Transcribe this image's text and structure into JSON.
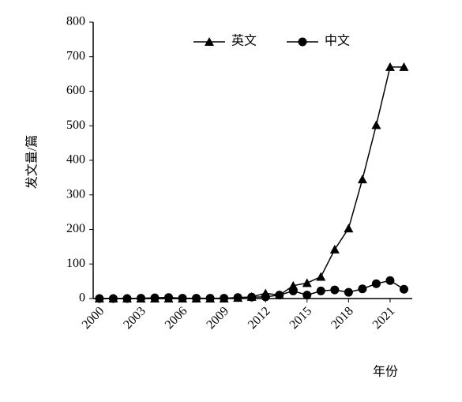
{
  "chart_data": {
    "type": "line",
    "x": [
      2000,
      2001,
      2002,
      2003,
      2004,
      2005,
      2006,
      2007,
      2008,
      2009,
      2010,
      2011,
      2012,
      2013,
      2014,
      2015,
      2016,
      2017,
      2018,
      2019,
      2020,
      2021,
      2022
    ],
    "series": [
      {
        "name": "英文",
        "color": "#000000",
        "marker": "triangle",
        "values": [
          0,
          0,
          0,
          0,
          0,
          0,
          0,
          0,
          0,
          0,
          2,
          5,
          15,
          10,
          37,
          45,
          63,
          142,
          203,
          345,
          502,
          670,
          670
        ]
      },
      {
        "name": "中文",
        "color": "#000000",
        "marker": "circle",
        "values": [
          0,
          0,
          0,
          1,
          2,
          3,
          1,
          1,
          1,
          1,
          3,
          4,
          5,
          10,
          22,
          10,
          22,
          25,
          18,
          28,
          43,
          52,
          27
        ]
      }
    ],
    "xlabel": "年份",
    "ylabel": "发文量/篇",
    "xlim": [
      1999.55,
      2022.6
    ],
    "ylim": [
      0,
      800
    ],
    "xticks": [
      2000,
      2003,
      2006,
      2009,
      2012,
      2015,
      2018,
      2021
    ],
    "yticks": [
      0,
      100,
      200,
      300,
      400,
      500,
      600,
      700,
      800
    ],
    "legend": "top-right",
    "grid": false
  }
}
